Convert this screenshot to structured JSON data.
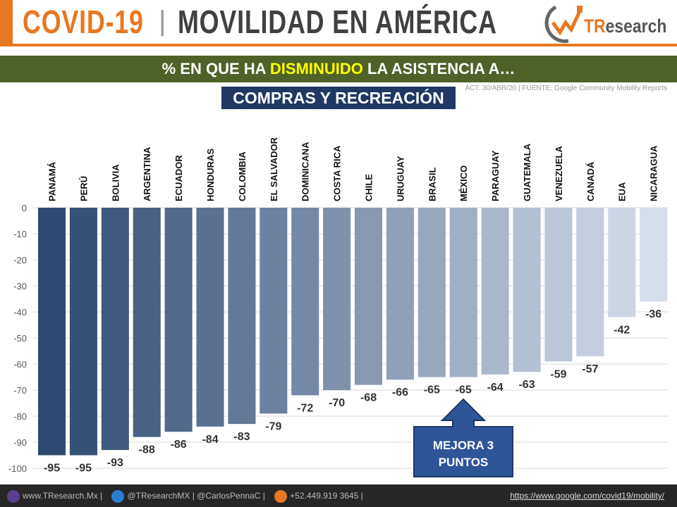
{
  "header": {
    "title_left": "COVID-19",
    "separator": "|",
    "title_right": "MOVILIDAD EN AMÉRICA",
    "logo_text_accent": "TR",
    "logo_text": "esearch"
  },
  "band": {
    "pre": "% EN QUE HA ",
    "highlight": "DISMINUIDO",
    "post": " LA ASISTENCIA A…"
  },
  "source": "ACT. 30/ABR/20 | FUENTE: Google Community Mobility Reports",
  "subtitle": "COMPRAS Y RECREACIÓN",
  "callout": "MEJORA 3 PUNTOS",
  "footer": {
    "site": "www.TResearch.Mx",
    "twitter": "@TResearchMX",
    "handle2": "@CarlosPennaC",
    "phone": "+52.449.919 3645",
    "url": "https://www.google.com/covid19/mobility/"
  },
  "colors": {
    "orange": "#e87722",
    "green_band": "#4f6228",
    "navy": "#1f3864",
    "bar_dark": "#2e4a72",
    "bar_light": "#d6deeb"
  },
  "chart_data": {
    "type": "bar",
    "categories": [
      "PANAMÁ",
      "PERÚ",
      "BOLIVIA",
      "ARGENTINA",
      "ECUADOR",
      "HONDURAS",
      "COLOMBIA",
      "EL SALVADOR",
      "DOMINICANA",
      "COSTA RICA",
      "CHILE",
      "URUGUAY",
      "BRASIL",
      "MÉXICO",
      "PARAGUAY",
      "GUATEMALA",
      "VENEZUELA",
      "CANADÁ",
      "EUA",
      "NICARAGUA"
    ],
    "values": [
      -95,
      -95,
      -93,
      -88,
      -86,
      -84,
      -83,
      -79,
      -72,
      -70,
      -68,
      -66,
      -65,
      -65,
      -64,
      -63,
      -59,
      -57,
      -42,
      -36
    ],
    "ylim": [
      -100,
      0
    ],
    "yticks": [
      0,
      -10,
      -20,
      -30,
      -40,
      -50,
      -60,
      -70,
      -80,
      -90,
      -100
    ],
    "grid": true
  }
}
